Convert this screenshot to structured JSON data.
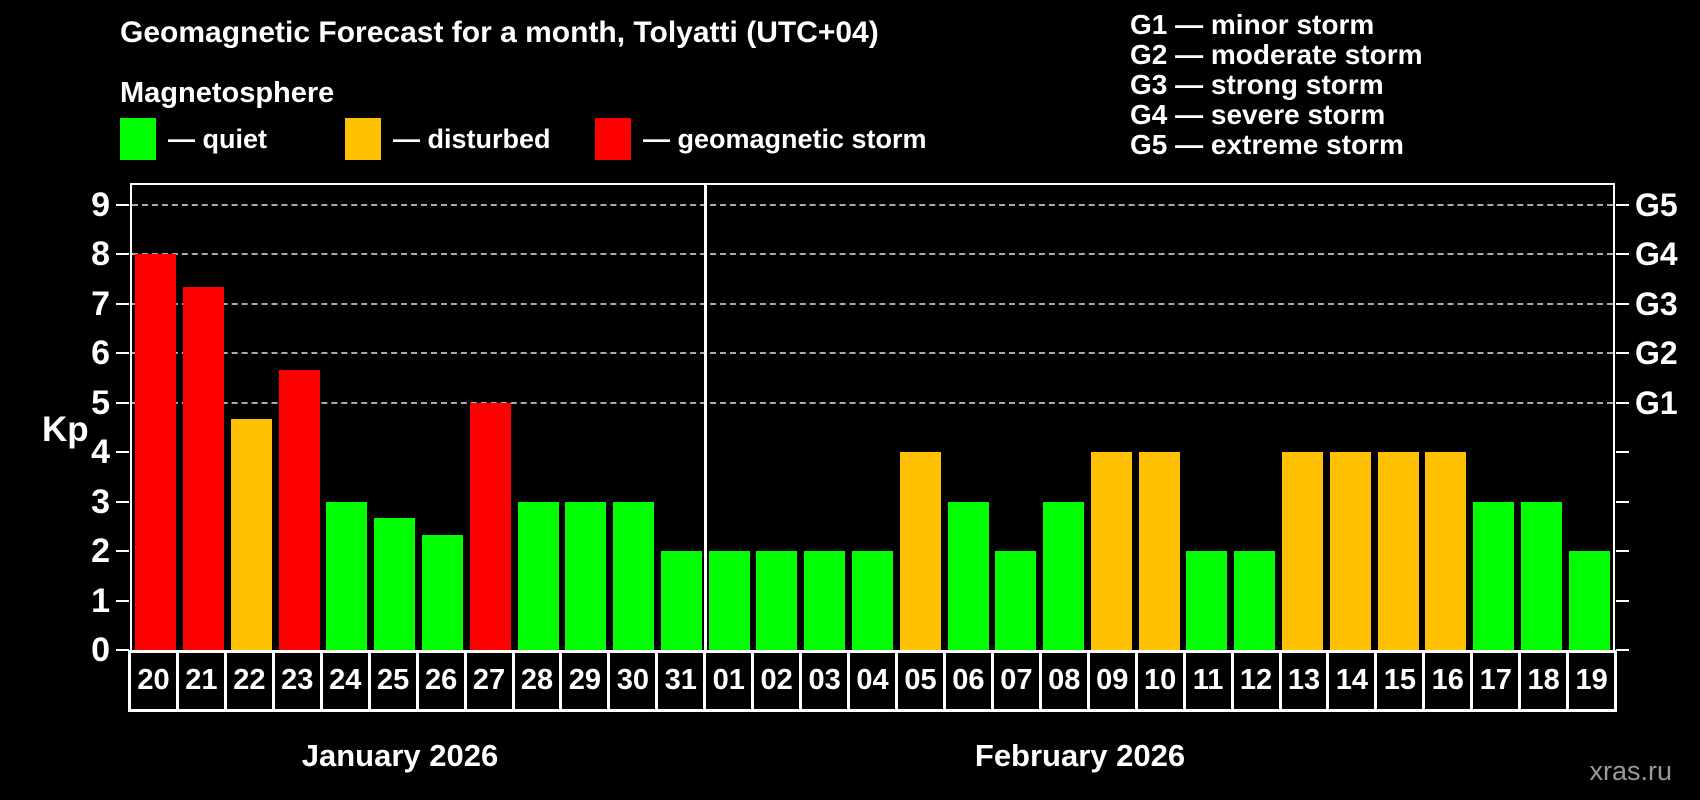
{
  "title": "Geomagnetic Forecast for a month, Tolyatti (UTC+04)",
  "subtitle": "Magnetosphere",
  "legend": {
    "items": [
      {
        "key": "quiet",
        "label": "— quiet",
        "color": "#00ff00"
      },
      {
        "key": "disturbed",
        "label": "— disturbed",
        "color": "#ffc000"
      },
      {
        "key": "storm",
        "label": "— geomagnetic storm",
        "color": "#ff0000"
      }
    ]
  },
  "g_legend": [
    "G1 — minor storm",
    "G2 — moderate storm",
    "G3 — strong storm",
    "G4 — severe storm",
    "G5 — extreme storm"
  ],
  "watermark": "xras.ru",
  "colors": {
    "quiet": "#00ff00",
    "disturbed": "#ffc000",
    "storm": "#ff0000",
    "background": "#000000",
    "axis": "#ffffff",
    "grid": "#aaaaaa",
    "watermark": "#999999"
  },
  "chart_data": {
    "type": "bar",
    "title": "Geomagnetic Forecast for a month, Tolyatti (UTC+04)",
    "ylabel": "Kp",
    "ylim": [
      0,
      9.4
    ],
    "yticks": [
      0,
      1,
      2,
      3,
      4,
      5,
      6,
      7,
      8,
      9
    ],
    "gridline_values": [
      5,
      6,
      7,
      8,
      9
    ],
    "grid": "horizontal dashed at storm levels only",
    "legend_position": "top-left",
    "right_axis_labels": [
      {
        "value": 5,
        "label": "G1"
      },
      {
        "value": 6,
        "label": "G2"
      },
      {
        "value": 7,
        "label": "G3"
      },
      {
        "value": 8,
        "label": "G4"
      },
      {
        "value": 9,
        "label": "G5"
      }
    ],
    "months": [
      {
        "label": "January 2026",
        "day_count": 12
      },
      {
        "label": "February 2026",
        "day_count": 19
      }
    ],
    "bars": [
      {
        "day": "20",
        "kp": 8,
        "status": "storm"
      },
      {
        "day": "21",
        "kp": 7.33,
        "status": "storm"
      },
      {
        "day": "22",
        "kp": 4.67,
        "status": "disturbed"
      },
      {
        "day": "23",
        "kp": 5.67,
        "status": "storm"
      },
      {
        "day": "24",
        "kp": 3,
        "status": "quiet"
      },
      {
        "day": "25",
        "kp": 2.67,
        "status": "quiet"
      },
      {
        "day": "26",
        "kp": 2.33,
        "status": "quiet"
      },
      {
        "day": "27",
        "kp": 5,
        "status": "storm"
      },
      {
        "day": "28",
        "kp": 3,
        "status": "quiet"
      },
      {
        "day": "29",
        "kp": 3,
        "status": "quiet"
      },
      {
        "day": "30",
        "kp": 3,
        "status": "quiet"
      },
      {
        "day": "31",
        "kp": 2,
        "status": "quiet"
      },
      {
        "day": "01",
        "kp": 2,
        "status": "quiet"
      },
      {
        "day": "02",
        "kp": 2,
        "status": "quiet"
      },
      {
        "day": "03",
        "kp": 2,
        "status": "quiet"
      },
      {
        "day": "04",
        "kp": 2,
        "status": "quiet"
      },
      {
        "day": "05",
        "kp": 4,
        "status": "disturbed"
      },
      {
        "day": "06",
        "kp": 3,
        "status": "quiet"
      },
      {
        "day": "07",
        "kp": 2,
        "status": "quiet"
      },
      {
        "day": "08",
        "kp": 3,
        "status": "quiet"
      },
      {
        "day": "09",
        "kp": 4,
        "status": "disturbed"
      },
      {
        "day": "10",
        "kp": 4,
        "status": "disturbed"
      },
      {
        "day": "11",
        "kp": 2,
        "status": "quiet"
      },
      {
        "day": "12",
        "kp": 2,
        "status": "quiet"
      },
      {
        "day": "13",
        "kp": 4,
        "status": "disturbed"
      },
      {
        "day": "14",
        "kp": 4,
        "status": "disturbed"
      },
      {
        "day": "15",
        "kp": 4,
        "status": "disturbed"
      },
      {
        "day": "16",
        "kp": 4,
        "status": "disturbed"
      },
      {
        "day": "17",
        "kp": 3,
        "status": "quiet"
      },
      {
        "day": "18",
        "kp": 3,
        "status": "quiet"
      },
      {
        "day": "19",
        "kp": 2,
        "status": "quiet"
      }
    ]
  }
}
